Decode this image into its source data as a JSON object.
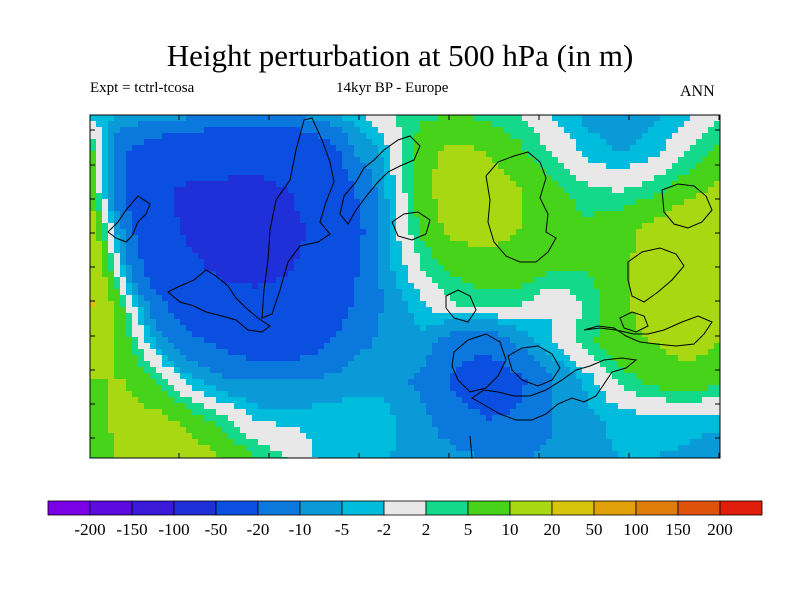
{
  "header": {
    "title": "Height perturbation at 500 hPa (in m)",
    "expt": "Expt = tctrl-tcosa",
    "period": "14kyr BP - Europe",
    "season": "ANN"
  },
  "chart_data": {
    "type": "heatmap",
    "title": "Height perturbation at 500 hPa (in m)",
    "xlabel": "",
    "ylabel": "",
    "units": "m",
    "region": "Europe",
    "grid": false,
    "legend": "bottom colorbar",
    "colorbar": {
      "labels": [
        "-200",
        "-150",
        "-100",
        "-50",
        "-20",
        "-10",
        "-5",
        "-2",
        "2",
        "5",
        "10",
        "20",
        "50",
        "100",
        "150",
        "200"
      ],
      "colors": [
        "#7a00e6",
        "#5c0ae0",
        "#3a1ad8",
        "#1f30d8",
        "#0a4fe0",
        "#0a78dc",
        "#0a9ad8",
        "#00bcdc",
        "#e8e8e8",
        "#14d88a",
        "#46d31a",
        "#a8d812",
        "#d8c40a",
        "#e0a00a",
        "#e07d0a",
        "#e0520a",
        "#e01e0a"
      ]
    },
    "series": [
      {
        "values": [
          [
            -3,
            -5,
            -6,
            -8,
            -10,
            -12,
            -10,
            -6,
            -3,
            2,
            4,
            5,
            4,
            2,
            -3,
            -6,
            -8,
            -6,
            -3,
            2
          ],
          [
            8,
            -20,
            -30,
            -35,
            -40,
            -45,
            -40,
            -30,
            -10,
            -3,
            8,
            12,
            10,
            6,
            2,
            -3,
            -5,
            -3,
            2,
            6
          ],
          [
            10,
            -20,
            -45,
            -55,
            -55,
            -55,
            -50,
            -40,
            -20,
            -4,
            8,
            14,
            14,
            10,
            6,
            3,
            2,
            4,
            8,
            12
          ],
          [
            15,
            -10,
            -40,
            -55,
            -60,
            -58,
            -55,
            -45,
            -25,
            -5,
            6,
            12,
            12,
            10,
            8,
            6,
            8,
            12,
            16,
            18
          ],
          [
            20,
            -5,
            -30,
            -45,
            -55,
            -55,
            -52,
            -42,
            -22,
            -6,
            2,
            6,
            8,
            8,
            6,
            5,
            8,
            14,
            18,
            20
          ],
          [
            22,
            5,
            -15,
            -30,
            -40,
            -45,
            -42,
            -35,
            -18,
            -8,
            -3,
            2,
            3,
            2,
            -2,
            3,
            8,
            14,
            18,
            18
          ],
          [
            15,
            8,
            -5,
            -15,
            -22,
            -28,
            -28,
            -22,
            -12,
            -8,
            -6,
            -15,
            -18,
            -8,
            -2,
            4,
            8,
            10,
            12,
            10
          ],
          [
            10,
            10,
            5,
            -3,
            -8,
            -10,
            -10,
            -8,
            -6,
            -6,
            -12,
            -22,
            -28,
            -22,
            -10,
            -4,
            3,
            6,
            8,
            6
          ],
          [
            8,
            12,
            12,
            8,
            3,
            -2,
            -3,
            -3,
            -3,
            -4,
            -8,
            -15,
            -20,
            -18,
            -10,
            -6,
            -4,
            -3,
            -3,
            -4
          ],
          [
            4,
            12,
            15,
            14,
            10,
            5,
            2,
            -3,
            -4,
            -5,
            -6,
            -8,
            -10,
            -10,
            -8,
            -6,
            -5,
            -5,
            -6,
            -8
          ]
        ]
      }
    ]
  }
}
